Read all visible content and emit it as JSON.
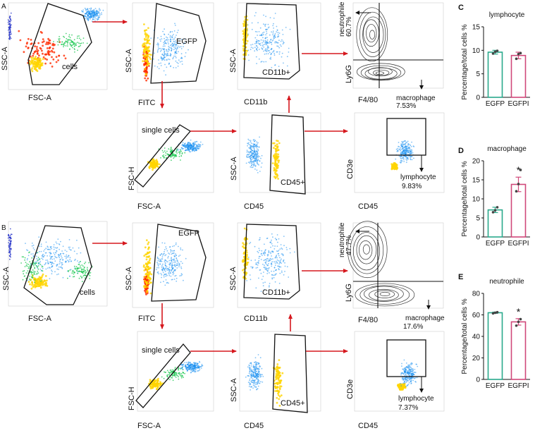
{
  "figure": {
    "panel_labels": {
      "A": "A",
      "B": "B",
      "C": "C",
      "D": "D",
      "E": "E"
    },
    "flow": {
      "axes": {
        "ssc_a": "SSC-A",
        "fsc_a": "FSC-A",
        "fitc": "FITC",
        "fsc_h": "FSC-H",
        "cd11b": "CD11b",
        "cd45": "CD45",
        "ly6g": "Ly6G",
        "f480": "F4/80",
        "cd3e": "CD3e"
      },
      "gates": {
        "cells": "cells",
        "egfp": "EGFP",
        "single_cells": "single cells",
        "cd11b_pos": "CD11b+",
        "cd45_pos": "CD45+",
        "neutrophile": "neutrophile",
        "macrophage": "macrophage",
        "lymphocyte": "lymphocyte"
      },
      "row_a": {
        "neutrophile_pct": "60.7%",
        "macrophage_pct": "7.53%",
        "lymphocyte_pct": "9.83%"
      },
      "row_b": {
        "neutrophile_pct": "47.7%",
        "macrophage_pct": "17.6%",
        "lymphocyte_pct": "7.37%"
      }
    }
  },
  "chart_data": [
    {
      "type": "bar",
      "panel": "C",
      "title": "lymphocyte",
      "ylabel": "Percentage/total cells %",
      "categories": [
        "EGFP",
        "EGFPI"
      ],
      "values": [
        9.6,
        8.9
      ],
      "errors": [
        0.4,
        0.7
      ],
      "points": [
        [
          9.3,
          9.7,
          9.9
        ],
        [
          8.2,
          9.2,
          9.4
        ]
      ],
      "significance": [
        "",
        ""
      ],
      "ylim": [
        0,
        15
      ],
      "yticks": [
        0,
        5,
        10,
        15
      ],
      "colors": [
        "#2aa98c",
        "#d0487a"
      ]
    },
    {
      "type": "bar",
      "panel": "D",
      "title": "macrophage",
      "ylabel": "Percentage/total cells %",
      "categories": [
        "EGFP",
        "EGFPI"
      ],
      "values": [
        7.1,
        13.8
      ],
      "errors": [
        0.7,
        1.9
      ],
      "points": [
        [
          6.5,
          7.0,
          7.8
        ],
        [
          12.0,
          13.9,
          17.6
        ]
      ],
      "significance": [
        "",
        "*"
      ],
      "ylim": [
        0,
        20
      ],
      "yticks": [
        0,
        5,
        10,
        15,
        20
      ],
      "colors": [
        "#2aa98c",
        "#d0487a"
      ]
    },
    {
      "type": "bar",
      "panel": "E",
      "title": "neutrophile",
      "ylabel": "Percentage/total cells %",
      "categories": [
        "EGFP",
        "EGFPI"
      ],
      "values": [
        62.0,
        53.5
      ],
      "errors": [
        0.6,
        3.0
      ],
      "points": [
        [
          61.4,
          62.0,
          62.5
        ],
        [
          50.0,
          53.5,
          56.0
        ]
      ],
      "significance": [
        "",
        "*"
      ],
      "ylim": [
        0,
        80
      ],
      "yticks": [
        0,
        20,
        40,
        60,
        80
      ],
      "colors": [
        "#2aa98c",
        "#d0487a"
      ]
    }
  ]
}
